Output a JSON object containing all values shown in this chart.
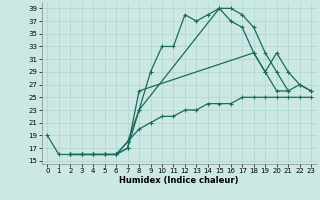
{
  "title": "",
  "xlabel": "Humidex (Indice chaleur)",
  "ylabel": "",
  "bg_color": "#cce8e4",
  "grid_color": "#aed4d0",
  "line_color": "#1a6b5a",
  "xlim": [
    -0.5,
    23.5
  ],
  "ylim": [
    14.5,
    40
  ],
  "yticks": [
    15,
    17,
    19,
    21,
    23,
    25,
    27,
    29,
    31,
    33,
    35,
    37,
    39
  ],
  "xticks": [
    0,
    1,
    2,
    3,
    4,
    5,
    6,
    7,
    8,
    9,
    10,
    11,
    12,
    13,
    14,
    15,
    16,
    17,
    18,
    19,
    20,
    21,
    22,
    23
  ],
  "series": [
    {
      "x": [
        0,
        1,
        2,
        3,
        4,
        5,
        6,
        7,
        8,
        9,
        10,
        11,
        12,
        13,
        14,
        15,
        16,
        17,
        18,
        19,
        20,
        21
      ],
      "y": [
        19,
        16,
        16,
        16,
        16,
        16,
        16,
        18,
        23,
        29,
        33,
        33,
        38,
        37,
        38,
        39,
        39,
        38,
        36,
        32,
        29,
        26
      ]
    },
    {
      "x": [
        2,
        3,
        4,
        5,
        6,
        7,
        8,
        15,
        16,
        17,
        18,
        19,
        20,
        21,
        22,
        23
      ],
      "y": [
        16,
        16,
        16,
        16,
        16,
        17,
        23,
        39,
        37,
        36,
        32,
        29,
        26,
        26,
        27,
        26
      ]
    },
    {
      "x": [
        2,
        3,
        4,
        5,
        6,
        7,
        8,
        18,
        19,
        20,
        21,
        22,
        23
      ],
      "y": [
        16,
        16,
        16,
        16,
        16,
        17,
        26,
        32,
        29,
        32,
        29,
        27,
        26
      ]
    },
    {
      "x": [
        2,
        3,
        4,
        5,
        6,
        7,
        8,
        9,
        10,
        11,
        12,
        13,
        14,
        15,
        16,
        17,
        18,
        19,
        20,
        21,
        22,
        23
      ],
      "y": [
        16,
        16,
        16,
        16,
        16,
        18,
        20,
        21,
        22,
        22,
        23,
        23,
        24,
        24,
        24,
        25,
        25,
        25,
        25,
        25,
        25,
        25
      ]
    }
  ]
}
